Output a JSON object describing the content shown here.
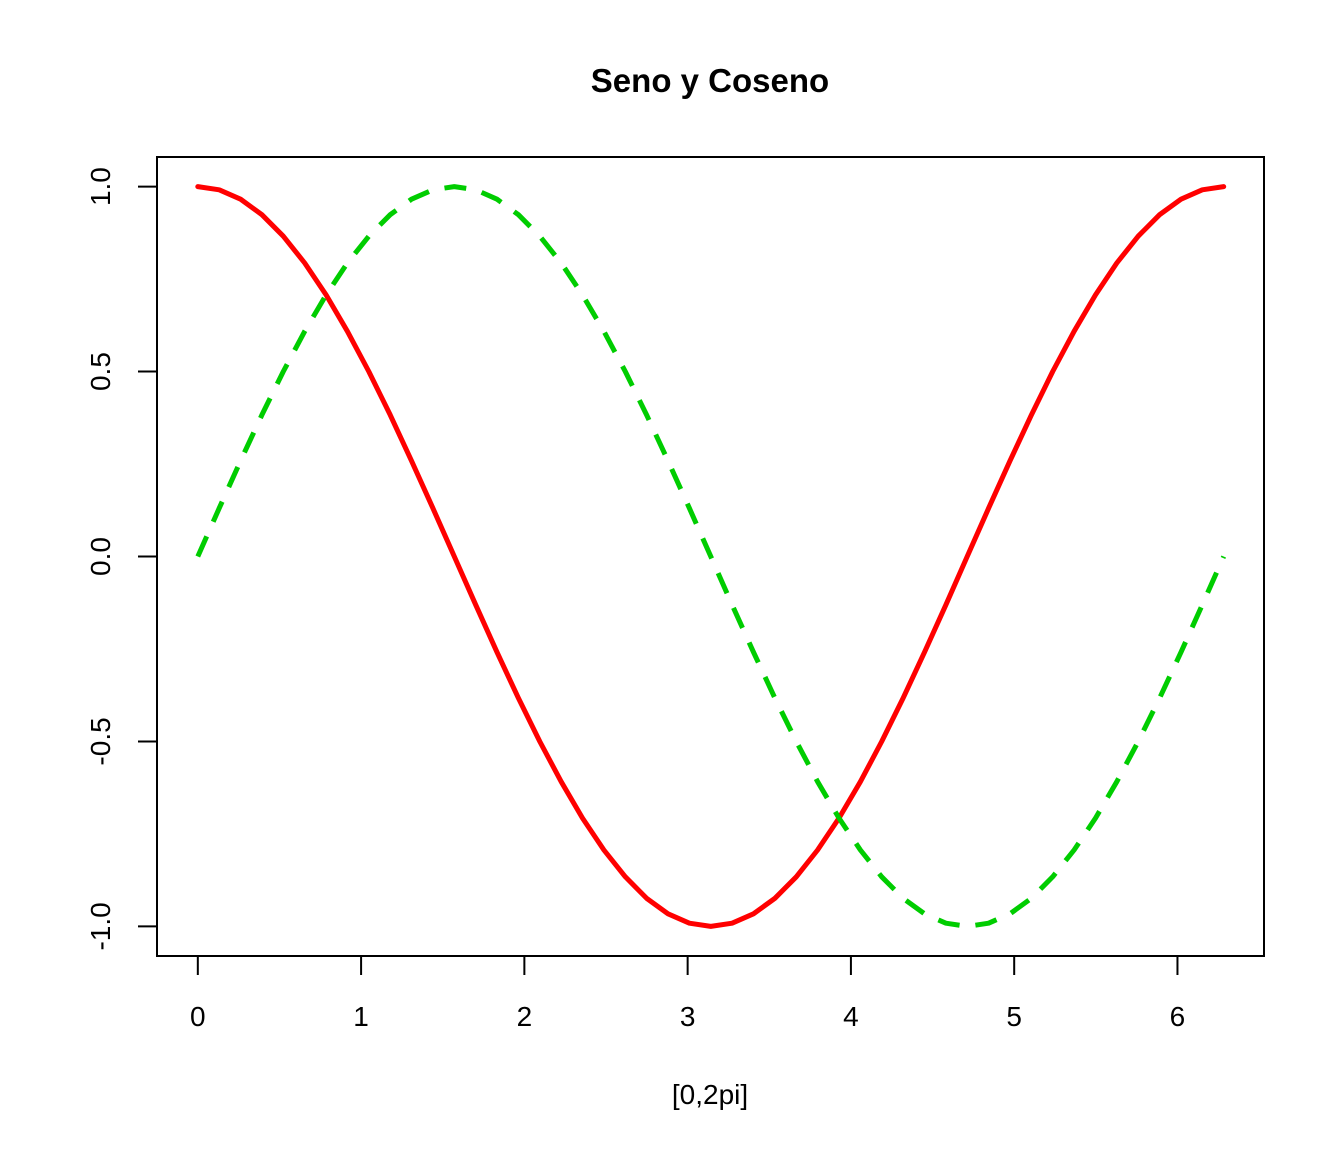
{
  "chart_data": {
    "type": "line",
    "title": "Seno y Coseno",
    "xlabel": "[0,2pi]",
    "ylabel": "",
    "xlim": [
      -0.25,
      6.53
    ],
    "ylim": [
      -1.08,
      1.08
    ],
    "x_ticks": [
      0,
      1,
      2,
      3,
      4,
      5,
      6
    ],
    "x_tick_labels": [
      "0",
      "1",
      "2",
      "3",
      "4",
      "5",
      "6"
    ],
    "y_ticks": [
      -1.0,
      -0.5,
      0.0,
      0.5,
      1.0
    ],
    "y_tick_labels": [
      "-1.0",
      "-0.5",
      "0.0",
      "0.5",
      "1.0"
    ],
    "grid": false,
    "legend": "none",
    "x": [
      0,
      0.1309,
      0.2618,
      0.3927,
      0.5236,
      0.6545,
      0.7854,
      0.9163,
      1.0472,
      1.1781,
      1.309,
      1.4399,
      1.5708,
      1.7017,
      1.8326,
      1.9635,
      2.0944,
      2.2253,
      2.3562,
      2.4871,
      2.618,
      2.7489,
      2.8798,
      3.0107,
      3.1416,
      3.2725,
      3.4034,
      3.5343,
      3.6652,
      3.7961,
      3.927,
      4.0579,
      4.1888,
      4.3197,
      4.4506,
      4.5815,
      4.7124,
      4.8433,
      4.9742,
      5.1051,
      5.236,
      5.3669,
      5.4978,
      5.6287,
      5.7596,
      5.8905,
      6.0214,
      6.1523,
      6.2832
    ],
    "series": [
      {
        "color": "#ff0000",
        "dash": "solid",
        "values": [
          1.0,
          0.9914,
          0.9659,
          0.9239,
          0.866,
          0.7934,
          0.7071,
          0.6088,
          0.5,
          0.3827,
          0.2588,
          0.1305,
          0.0,
          -0.1305,
          -0.2588,
          -0.3827,
          -0.5,
          -0.6088,
          -0.7071,
          -0.7934,
          -0.866,
          -0.9239,
          -0.9659,
          -0.9914,
          -1.0,
          -0.9914,
          -0.9659,
          -0.9239,
          -0.866,
          -0.7934,
          -0.7071,
          -0.6088,
          -0.5,
          -0.3827,
          -0.2588,
          -0.1305,
          0.0,
          0.1305,
          0.2588,
          0.3827,
          0.5,
          0.6088,
          0.7071,
          0.7934,
          0.866,
          0.9239,
          0.9659,
          0.9914,
          1.0
        ]
      },
      {
        "color": "#00cd00",
        "dash": "dashed",
        "values": [
          0.0,
          0.1305,
          0.2588,
          0.3827,
          0.5,
          0.6088,
          0.7071,
          0.7934,
          0.866,
          0.9239,
          0.9659,
          0.9914,
          1.0,
          0.9914,
          0.9659,
          0.9239,
          0.866,
          0.7934,
          0.7071,
          0.6088,
          0.5,
          0.3827,
          0.2588,
          0.1305,
          0.0,
          -0.1305,
          -0.2588,
          -0.3827,
          -0.5,
          -0.6088,
          -0.7071,
          -0.7934,
          -0.866,
          -0.9239,
          -0.9659,
          -0.9914,
          -1.0,
          -0.9914,
          -0.9659,
          -0.9239,
          -0.866,
          -0.7934,
          -0.7071,
          -0.6088,
          -0.5,
          -0.3827,
          -0.2588,
          -0.1305,
          0.0
        ]
      }
    ]
  }
}
